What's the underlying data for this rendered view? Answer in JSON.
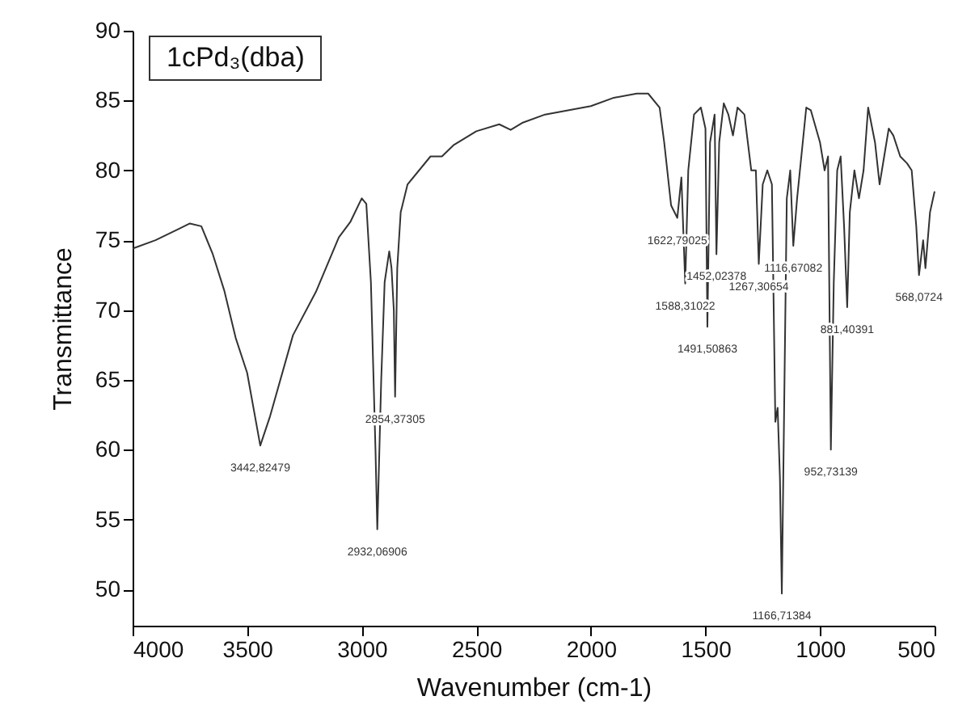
{
  "chart_data": {
    "type": "line",
    "title": "1cPd₃(dba)",
    "xlabel": "Wavenumber (cm-1)",
    "ylabel": "Transmittance",
    "xlim": [
      4000,
      500
    ],
    "ylim": [
      47.4,
      90
    ],
    "xticks": [
      4000,
      3500,
      3000,
      2500,
      2000,
      1500,
      1000,
      500
    ],
    "yticks": [
      50,
      55,
      60,
      65,
      70,
      75,
      80,
      85,
      90
    ],
    "series": [
      {
        "color": "#333333",
        "x": [
          4000,
          3900,
          3800,
          3750,
          3700,
          3650,
          3600,
          3550,
          3500,
          3442.82,
          3400,
          3300,
          3200,
          3100,
          3050,
          3000,
          2980,
          2960,
          2940,
          2932.07,
          2915,
          2900,
          2880,
          2870,
          2860,
          2854.37,
          2845,
          2830,
          2800,
          2700,
          2650,
          2600,
          2500,
          2400,
          2350,
          2300,
          2200,
          2000,
          1900,
          1800,
          1750,
          1700,
          1680,
          1650,
          1622.79,
          1605,
          1588.31,
          1575,
          1550,
          1520,
          1500,
          1491.51,
          1480,
          1460,
          1452.02,
          1440,
          1420,
          1400,
          1380,
          1360,
          1330,
          1300,
          1280,
          1267.31,
          1250,
          1230,
          1210,
          1195,
          1185,
          1175,
          1166.71,
          1155,
          1145,
          1130,
          1116.67,
          1100,
          1060,
          1040,
          1000,
          980,
          965,
          952.73,
          940,
          925,
          910,
          895,
          881.4,
          870,
          850,
          830,
          810,
          790,
          760,
          740,
          720,
          700,
          680,
          650,
          620,
          600,
          580,
          568.07,
          550,
          540,
          520,
          500
        ],
        "values": [
          74.4,
          75.0,
          75.8,
          76.2,
          76.0,
          74.0,
          71.4,
          68.0,
          65.5,
          60.3,
          62.4,
          68.2,
          71.3,
          75.2,
          76.3,
          78.0,
          77.6,
          72.0,
          60.0,
          54.3,
          65.0,
          72.0,
          74.2,
          73.0,
          70.0,
          63.8,
          73.0,
          77.0,
          79.0,
          81.0,
          81.0,
          81.8,
          82.8,
          83.3,
          82.9,
          83.4,
          84.0,
          84.6,
          85.2,
          85.5,
          85.5,
          84.5,
          82.0,
          77.5,
          76.6,
          79.5,
          71.9,
          80.0,
          84.0,
          84.5,
          83.0,
          68.8,
          82.0,
          84.0,
          74.0,
          82.0,
          84.8,
          84.0,
          82.5,
          84.5,
          84.0,
          80.0,
          80.0,
          73.3,
          79.0,
          80.0,
          79.0,
          62.0,
          63.0,
          58.0,
          49.7,
          65.0,
          78.0,
          80.0,
          74.6,
          78.0,
          84.5,
          84.3,
          82.0,
          80.0,
          81.0,
          60.0,
          72.0,
          80.0,
          81.0,
          76.0,
          70.2,
          77.0,
          80.0,
          78.0,
          80.0,
          84.5,
          82.0,
          79.0,
          81.0,
          83.0,
          82.5,
          81.0,
          80.5,
          80.0,
          76.0,
          72.5,
          75.0,
          73.0,
          77.0,
          78.5
        ]
      }
    ],
    "annotations": [
      {
        "text": "3442,82479",
        "x": 3442.82,
        "y": 60.3
      },
      {
        "text": "2932,06906",
        "x": 2932.07,
        "y": 54.3
      },
      {
        "text": "2854,37305",
        "x": 2854.37,
        "y": 63.8
      },
      {
        "text": "1622,79025",
        "x": 1622.79,
        "y": 76.6
      },
      {
        "text": "1588,31022",
        "x": 1588.31,
        "y": 71.9
      },
      {
        "text": "1491,50863",
        "x": 1491.51,
        "y": 68.8
      },
      {
        "text": "1452,02378",
        "x": 1452.02,
        "y": 74.0
      },
      {
        "text": "1267,30654",
        "x": 1267.31,
        "y": 73.3
      },
      {
        "text": "1116,67082",
        "x": 1116.67,
        "y": 74.6
      },
      {
        "text": "1166,71384",
        "x": 1166.71,
        "y": 49.7
      },
      {
        "text": "952,73139",
        "x": 952.73,
        "y": 60.0
      },
      {
        "text": "881,40391",
        "x": 881.4,
        "y": 70.2
      },
      {
        "text": "568,0724",
        "x": 568.07,
        "y": 72.5
      }
    ]
  }
}
